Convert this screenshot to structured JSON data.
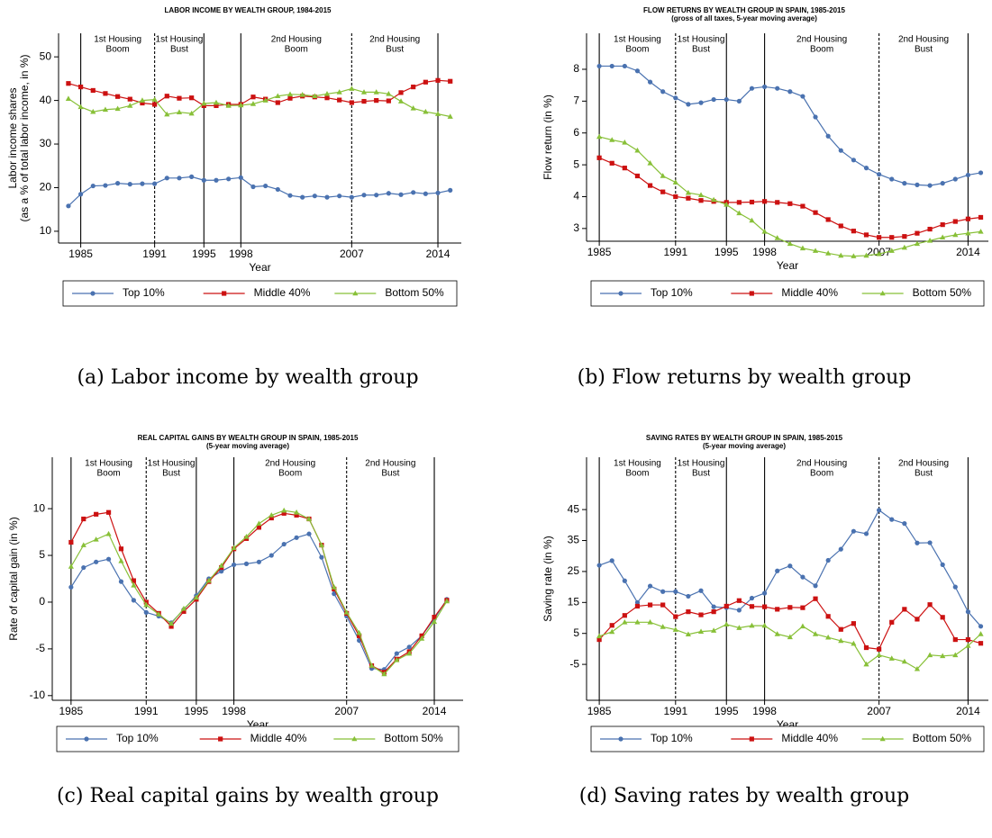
{
  "chart_data": [
    {
      "type": "line",
      "title": "LABOR INCOME BY WEALTH GROUP, 1984-2015",
      "ylabel": "Labor income shares",
      "ylabel2": "(as a % of total labor income, in %)",
      "xlabel": "Year",
      "caption": "(a) Labor income by wealth group",
      "x": [
        1984,
        1985,
        1986,
        1987,
        1988,
        1989,
        1990,
        1991,
        1992,
        1993,
        1994,
        1995,
        1996,
        1997,
        1998,
        1999,
        2000,
        2001,
        2002,
        2003,
        2004,
        2005,
        2006,
        2007,
        2008,
        2009,
        2010,
        2011,
        2012,
        2013,
        2014,
        2015
      ],
      "xlim": [
        1983.2,
        2015.9
      ],
      "xticks": [
        1985,
        1991,
        1995,
        1998,
        2007,
        2014
      ],
      "ylim": [
        7.3,
        55.4
      ],
      "yticks": [
        10,
        20,
        30,
        40,
        50
      ],
      "vlines": [
        {
          "x": 1985,
          "dashed": false
        },
        {
          "x": 1991,
          "dashed": true
        },
        {
          "x": 1995,
          "dashed": false
        },
        {
          "x": 1998,
          "dashed": false
        },
        {
          "x": 2007,
          "dashed": true
        },
        {
          "x": 2014,
          "dashed": false
        }
      ],
      "periods": [
        {
          "label": [
            "1st Housing",
            "Boom"
          ],
          "from": 1985,
          "to": 1991
        },
        {
          "label": [
            "1st Housing",
            "Bust"
          ],
          "from": 1991,
          "to": 1995
        },
        {
          "label": [
            "2nd Housing",
            "Boom"
          ],
          "from": 1998,
          "to": 2007
        },
        {
          "label": [
            "2nd Housing",
            "Bust"
          ],
          "from": 2007,
          "to": 2014
        }
      ],
      "series": [
        {
          "name": "Top 10%",
          "color": "#4a72b0",
          "marker": "circle",
          "values": [
            15.8,
            18.5,
            20.4,
            20.5,
            21.0,
            20.8,
            20.9,
            20.9,
            22.2,
            22.2,
            22.5,
            21.7,
            21.7,
            22.0,
            22.3,
            20.2,
            20.4,
            19.6,
            18.2,
            17.8,
            18.1,
            17.8,
            18.1,
            17.8,
            18.3,
            18.3,
            18.7,
            18.4,
            18.9,
            18.6,
            18.8,
            19.4
          ]
        },
        {
          "name": "Middle 40%",
          "color": "#cc1111",
          "marker": "square",
          "values": [
            43.9,
            43.1,
            42.3,
            41.6,
            40.9,
            40.3,
            39.4,
            39.1,
            41.0,
            40.5,
            40.6,
            38.8,
            38.8,
            39.1,
            39.1,
            40.8,
            40.3,
            39.5,
            40.5,
            41.0,
            40.8,
            40.6,
            40.1,
            39.5,
            39.8,
            40.0,
            39.9,
            41.8,
            43.1,
            44.2,
            44.6,
            44.4
          ]
        },
        {
          "name": "Bottom 50%",
          "color": "#88c038",
          "marker": "triangle",
          "values": [
            40.4,
            38.5,
            37.4,
            37.9,
            38.1,
            38.8,
            40.0,
            40.2,
            36.8,
            37.3,
            37.0,
            39.3,
            39.5,
            38.8,
            38.9,
            39.2,
            40.0,
            41.0,
            41.4,
            41.3,
            41.0,
            41.5,
            41.9,
            42.7,
            41.9,
            41.9,
            41.5,
            39.8,
            38.2,
            37.4,
            36.9,
            36.3
          ]
        }
      ]
    },
    {
      "type": "line",
      "title": "FLOW RETURNS BY WEALTH GROUP IN SPAIN, 1985-2015",
      "subtitle": "(gross of all taxes, 5-year moving average)",
      "ylabel": "Flow return (in %)",
      "xlabel": "Year",
      "caption": "(b) Flow returns by wealth group",
      "x": [
        1985,
        1986,
        1987,
        1988,
        1989,
        1990,
        1991,
        1992,
        1993,
        1994,
        1995,
        1996,
        1997,
        1998,
        1999,
        2000,
        2001,
        2002,
        2003,
        2004,
        2005,
        2006,
        2007,
        2008,
        2009,
        2010,
        2011,
        2012,
        2013,
        2014,
        2015
      ],
      "xlim": [
        1984,
        2015.6
      ],
      "xticks": [
        1985,
        1991,
        1995,
        1998,
        2007,
        2014
      ],
      "ylim": [
        2.6,
        9.13
      ],
      "yticks": [
        3,
        4,
        5,
        6,
        7,
        8
      ],
      "vlines": [
        {
          "x": 1985,
          "dashed": false
        },
        {
          "x": 1991,
          "dashed": true
        },
        {
          "x": 1995,
          "dashed": false
        },
        {
          "x": 1998,
          "dashed": false
        },
        {
          "x": 2007,
          "dashed": true
        },
        {
          "x": 2014,
          "dashed": false
        }
      ],
      "periods": [
        {
          "label": [
            "1st Housing",
            "Boom"
          ],
          "from": 1985,
          "to": 1991
        },
        {
          "label": [
            "1st Housing",
            "Bust"
          ],
          "from": 1991,
          "to": 1995
        },
        {
          "label": [
            "2nd Housing",
            "Boom"
          ],
          "from": 1998,
          "to": 2007
        },
        {
          "label": [
            "2nd Housing",
            "Bust"
          ],
          "from": 2007,
          "to": 2014
        }
      ],
      "series": [
        {
          "name": "Top 10%",
          "color": "#4a72b0",
          "marker": "circle",
          "values": [
            8.1,
            8.1,
            8.1,
            7.95,
            7.6,
            7.3,
            7.1,
            6.9,
            6.95,
            7.05,
            7.05,
            7.0,
            7.4,
            7.45,
            7.4,
            7.3,
            7.15,
            6.5,
            5.9,
            5.45,
            5.15,
            4.9,
            4.7,
            4.55,
            4.42,
            4.37,
            4.35,
            4.42,
            4.55,
            4.68,
            4.75
          ]
        },
        {
          "name": "Middle 40%",
          "color": "#cc1111",
          "marker": "square",
          "values": [
            5.22,
            5.05,
            4.9,
            4.65,
            4.35,
            4.15,
            4.0,
            3.95,
            3.88,
            3.85,
            3.82,
            3.82,
            3.83,
            3.85,
            3.82,
            3.78,
            3.7,
            3.5,
            3.28,
            3.08,
            2.92,
            2.8,
            2.72,
            2.72,
            2.75,
            2.85,
            2.98,
            3.12,
            3.22,
            3.3,
            3.35
          ]
        },
        {
          "name": "Bottom 50%",
          "color": "#88c038",
          "marker": "triangle",
          "values": [
            5.88,
            5.78,
            5.7,
            5.45,
            5.05,
            4.65,
            4.45,
            4.12,
            4.05,
            3.9,
            3.75,
            3.48,
            3.25,
            2.9,
            2.7,
            2.52,
            2.38,
            2.3,
            2.22,
            2.15,
            2.13,
            2.15,
            2.2,
            2.3,
            2.4,
            2.52,
            2.62,
            2.72,
            2.8,
            2.85,
            2.9
          ]
        }
      ]
    },
    {
      "type": "line",
      "title": "REAL CAPITAL GAINS BY WEALTH GROUP IN SPAIN, 1985-2015",
      "subtitle": "(5-year moving average)",
      "ylabel": "Rate of capital gain (in %)",
      "xlabel": "Year",
      "caption": "(c) Real capital gains by wealth group",
      "x": [
        1985,
        1986,
        1987,
        1988,
        1989,
        1990,
        1991,
        1992,
        1993,
        1994,
        1995,
        1996,
        1997,
        1998,
        1999,
        2000,
        2001,
        2002,
        2003,
        2004,
        2005,
        2006,
        2007,
        2008,
        2009,
        2010,
        2011,
        2012,
        2013,
        2014,
        2015
      ],
      "xlim": [
        1983.5,
        2016.3
      ],
      "xticks": [
        1985,
        1991,
        1995,
        1998,
        2007,
        2014
      ],
      "ylim": [
        -10.5,
        15.5
      ],
      "yticks": [
        -10,
        -5,
        0,
        5,
        10
      ],
      "vlines": [
        {
          "x": 1985,
          "dashed": false
        },
        {
          "x": 1991,
          "dashed": true
        },
        {
          "x": 1995,
          "dashed": false
        },
        {
          "x": 1998,
          "dashed": false
        },
        {
          "x": 2007,
          "dashed": true
        },
        {
          "x": 2014,
          "dashed": false
        }
      ],
      "periods": [
        {
          "label": [
            "1st Housing",
            "Boom"
          ],
          "from": 1985,
          "to": 1991
        },
        {
          "label": [
            "1st Housing",
            "Bust"
          ],
          "from": 1991,
          "to": 1995
        },
        {
          "label": [
            "2nd Housing",
            "Boom"
          ],
          "from": 1998,
          "to": 2007
        },
        {
          "label": [
            "2nd Housing",
            "Bust"
          ],
          "from": 2007,
          "to": 2014
        }
      ],
      "series": [
        {
          "name": "Top 10%",
          "color": "#4a72b0",
          "marker": "circle",
          "values": [
            1.6,
            3.7,
            4.3,
            4.6,
            2.2,
            0.2,
            -1.1,
            -1.5,
            -2.2,
            -0.8,
            0.7,
            2.5,
            3.3,
            4.0,
            4.1,
            4.3,
            5.0,
            6.2,
            6.9,
            7.3,
            4.8,
            0.9,
            -1.5,
            -4.1,
            -7.1,
            -7.2,
            -5.5,
            -4.8,
            -3.6,
            -1.8,
            0.3
          ]
        },
        {
          "name": "Middle 40%",
          "color": "#cc1111",
          "marker": "square",
          "values": [
            6.4,
            8.9,
            9.4,
            9.6,
            5.7,
            2.3,
            0,
            -1.2,
            -2.6,
            -1.0,
            0.3,
            2.2,
            3.7,
            5.7,
            6.8,
            8.0,
            9.0,
            9.5,
            9.3,
            8.9,
            6.1,
            1.4,
            -1.2,
            -3.6,
            -6.8,
            -7.5,
            -6.1,
            -5.3,
            -3.6,
            -1.6,
            0.2
          ]
        },
        {
          "name": "Bottom 50%",
          "color": "#88c038",
          "marker": "triangle",
          "values": [
            3.8,
            6.1,
            6.7,
            7.3,
            4.4,
            1.8,
            -0.3,
            -1.3,
            -2.3,
            -0.7,
            0.5,
            2.3,
            3.9,
            5.8,
            7.0,
            8.4,
            9.3,
            9.8,
            9.6,
            8.9,
            6.1,
            1.6,
            -1.1,
            -3.3,
            -6.8,
            -7.7,
            -6.2,
            -5.5,
            -3.9,
            -2.1,
            0.1
          ]
        }
      ]
    },
    {
      "type": "line",
      "title": "SAVING RATES BY WEALTH GROUP IN SPAIN, 1985-2015",
      "subtitle": "(5-year moving average)",
      "ylabel": "Saving rate (in %)",
      "xlabel": "Year",
      "caption": "(d) Saving rates by wealth group",
      "x": [
        1985,
        1986,
        1987,
        1988,
        1989,
        1990,
        1991,
        1992,
        1993,
        1994,
        1995,
        1996,
        1997,
        1998,
        1999,
        2000,
        2001,
        2002,
        2003,
        2004,
        2005,
        2006,
        2007,
        2008,
        2009,
        2010,
        2011,
        2012,
        2013,
        2014,
        2015
      ],
      "xlim": [
        1984,
        2015.6
      ],
      "xticks": [
        1985,
        1991,
        1995,
        1998,
        2007,
        2014
      ],
      "ylim": [
        -16.6,
        61.9
      ],
      "yticks": [
        -5,
        5,
        15,
        25,
        35,
        45
      ],
      "vlines": [
        {
          "x": 1985,
          "dashed": false
        },
        {
          "x": 1991,
          "dashed": true
        },
        {
          "x": 1995,
          "dashed": false
        },
        {
          "x": 1998,
          "dashed": false
        },
        {
          "x": 2007,
          "dashed": true
        },
        {
          "x": 2014,
          "dashed": false
        }
      ],
      "periods": [
        {
          "label": [
            "1st Housing",
            "Boom"
          ],
          "from": 1985,
          "to": 1991
        },
        {
          "label": [
            "1st Housing",
            "Bust"
          ],
          "from": 1991,
          "to": 1995
        },
        {
          "label": [
            "2nd Housing",
            "Boom"
          ],
          "from": 1998,
          "to": 2007
        },
        {
          "label": [
            "2nd Housing",
            "Bust"
          ],
          "from": 2007,
          "to": 2014
        }
      ],
      "series": [
        {
          "name": "Top 10%",
          "color": "#4a72b0",
          "marker": "circle",
          "values": [
            27,
            28.5,
            22,
            15,
            20.3,
            18.5,
            18.5,
            17,
            18.8,
            13.6,
            13.3,
            12.5,
            16.4,
            18,
            25.2,
            26.8,
            23.2,
            20.4,
            28.6,
            32.2,
            38,
            37.2,
            44.8,
            41.8,
            40.5,
            34.2,
            34.3,
            27.2,
            20,
            12,
            7.3
          ]
        },
        {
          "name": "Middle 40%",
          "color": "#cc1111",
          "marker": "square",
          "values": [
            3,
            7.6,
            10.8,
            13.8,
            14.2,
            14.2,
            10.4,
            12,
            11,
            12,
            13.8,
            15.6,
            13.7,
            13.6,
            12.8,
            13.4,
            13.3,
            16.2,
            10.5,
            6.3,
            8.2,
            0.4,
            -0.1,
            8.6,
            12.8,
            9.6,
            14.3,
            10.2,
            3,
            3,
            1.8
          ]
        },
        {
          "name": "Bottom 50%",
          "color": "#88c038",
          "marker": "triangle",
          "values": [
            4.1,
            5.5,
            8.6,
            8.6,
            8.6,
            7.1,
            6.2,
            4.7,
            5.6,
            5.9,
            7.9,
            6.8,
            7.5,
            7.5,
            4.8,
            3.8,
            7.3,
            4.8,
            3.7,
            2.6,
            1.7,
            -5,
            -2,
            -3.1,
            -4.1,
            -6.5,
            -2,
            -2.3,
            -2,
            1,
            4.8
          ]
        }
      ]
    }
  ]
}
